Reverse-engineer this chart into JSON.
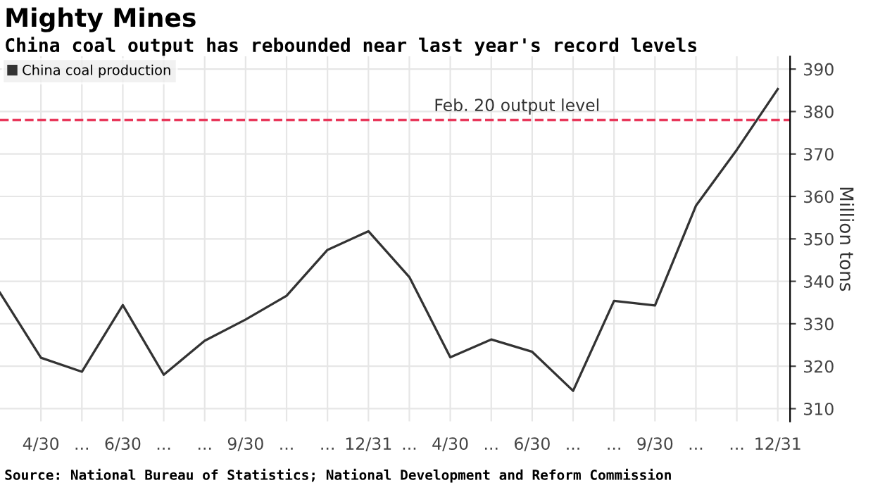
{
  "chart_data": {
    "type": "line",
    "title": "Mighty Mines",
    "subtitle": "China coal output has rebounded near last year's record levels",
    "ylabel": "Million tons",
    "categories": [
      null,
      "4/30",
      "...",
      "6/30",
      "...",
      "...",
      "9/30",
      "...",
      "...",
      "12/31",
      "...",
      "4/30",
      "...",
      "6/30",
      "...",
      "...",
      "9/30",
      "...",
      "...",
      "12/31"
    ],
    "series": [
      {
        "name": "China coal production",
        "color": "#333333",
        "values": [
          337.3,
          322,
          318.7,
          334.4,
          318,
          326,
          331,
          336.6,
          347.4,
          351.8,
          341,
          322.1,
          326.3,
          323.4,
          314.2,
          335.4,
          334.3,
          357.8,
          371,
          385.3
        ]
      }
    ],
    "ylim": [
      307,
      393
    ],
    "yticks": [
      310,
      320,
      330,
      340,
      350,
      360,
      370,
      380,
      390
    ],
    "ref_lines": [
      {
        "axis": "y",
        "value": 378,
        "label": "Feb. 20 output level",
        "color": "#e8375a",
        "line_style": "dashed"
      }
    ],
    "annotations": [
      "Source: National Bureau of Statistics; National Development and Reform Commission"
    ],
    "grid": true,
    "legend": "top left",
    "marker": "none",
    "line_style": "solid"
  }
}
